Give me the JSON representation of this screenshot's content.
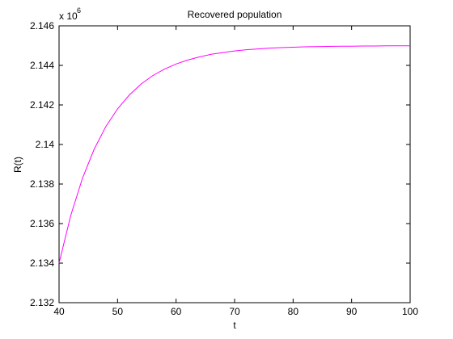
{
  "chart_data": {
    "type": "line",
    "title": "Recovered population",
    "xlabel": "t",
    "ylabel": "R(t)",
    "y_multiplier": {
      "base": "x 10",
      "exponent": "6"
    },
    "x": [
      40,
      42,
      44,
      46,
      48,
      50,
      52,
      54,
      56,
      58,
      60,
      62,
      64,
      66,
      68,
      70,
      72,
      74,
      76,
      78,
      80,
      82,
      84,
      86,
      88,
      90,
      92,
      94,
      96,
      98,
      100
    ],
    "series": [
      {
        "name": "R(t)",
        "color": "#ff00ff",
        "values": [
          2.134,
          2.13641,
          2.13829,
          2.13976,
          2.14091,
          2.1418,
          2.1425,
          2.14305,
          2.14348,
          2.14381,
          2.14407,
          2.14427,
          2.14443,
          2.14456,
          2.14465,
          2.14473,
          2.14479,
          2.14483,
          2.14487,
          2.1449,
          2.14492,
          2.14494,
          2.14495,
          2.14496,
          2.14497,
          2.14497,
          2.14498,
          2.14498,
          2.14499,
          2.14499,
          2.14499
        ]
      }
    ],
    "xlim": [
      40,
      100
    ],
    "xticks": [
      40,
      50,
      60,
      70,
      80,
      90,
      100
    ],
    "ylim": [
      2.132,
      2.146
    ],
    "yticks": [
      2.132,
      2.134,
      2.136,
      2.138,
      2.14,
      2.142,
      2.144,
      2.146
    ],
    "grid": false
  }
}
